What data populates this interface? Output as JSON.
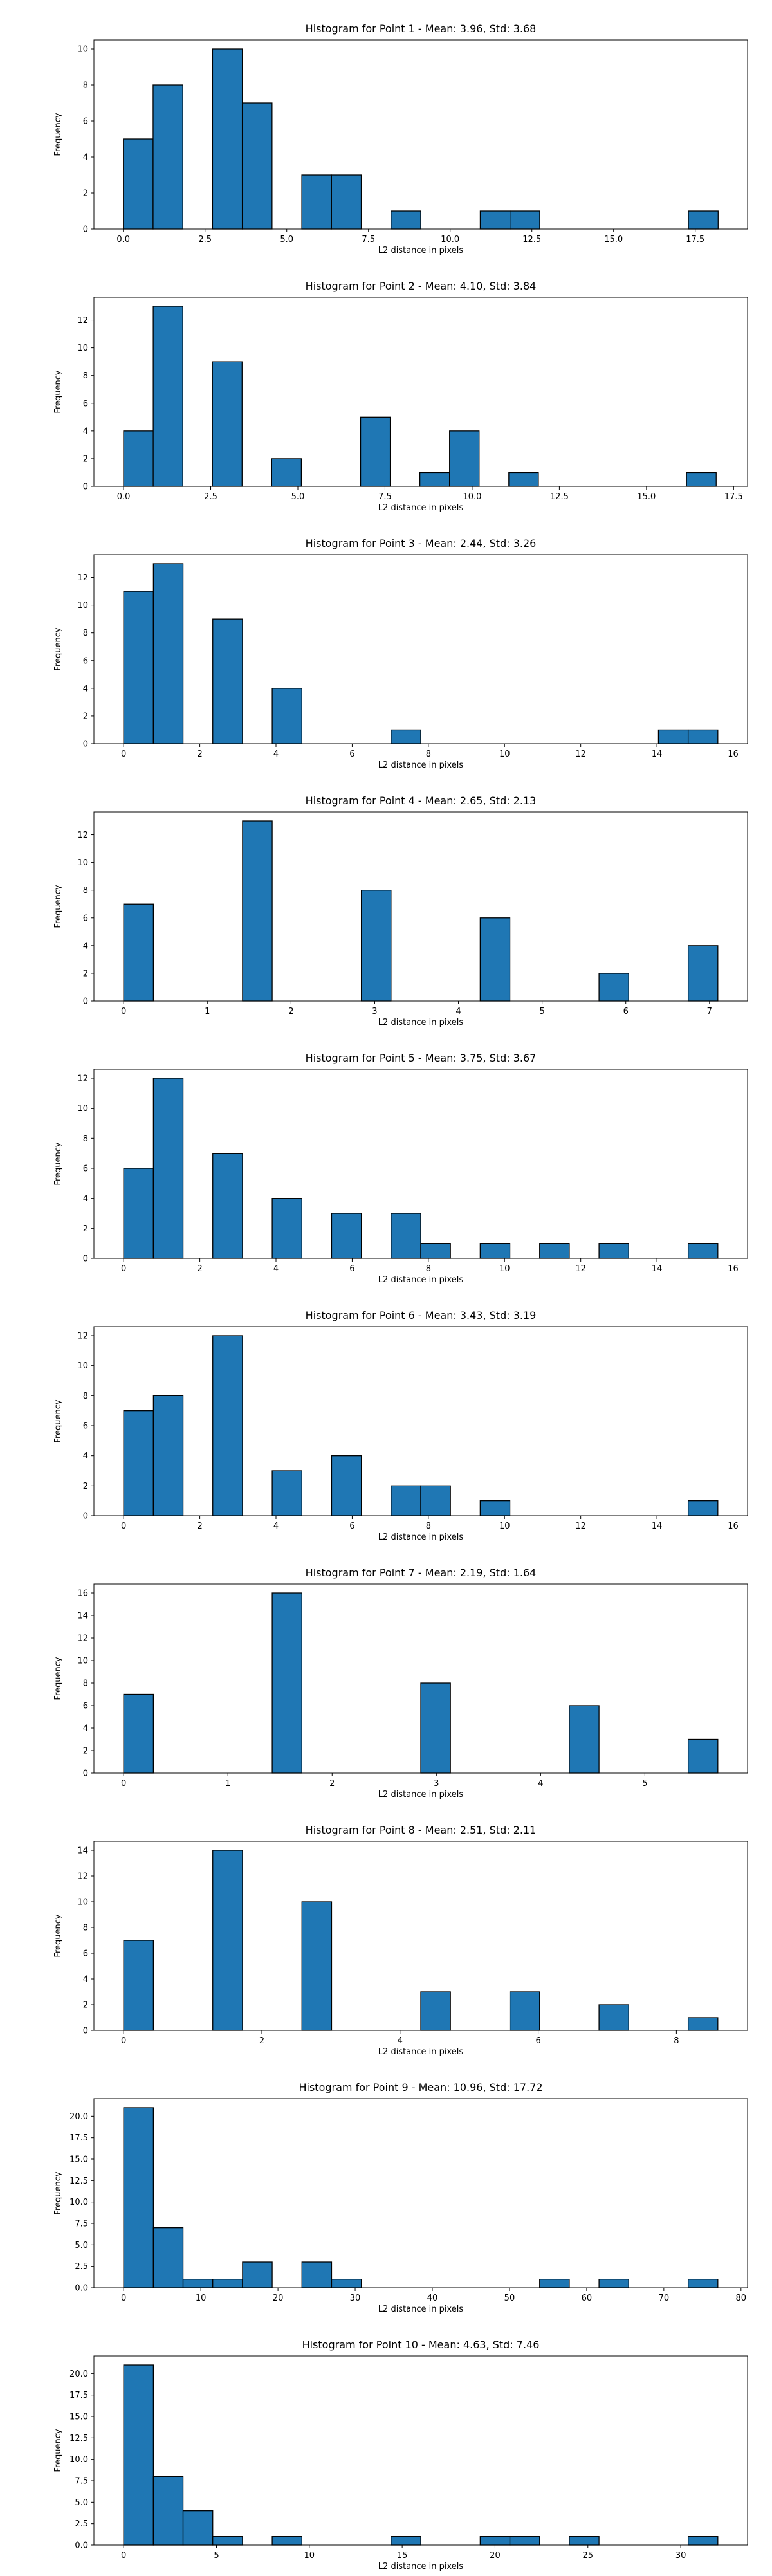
{
  "chart_data": [
    {
      "type": "bar",
      "title": "Histogram for Point 1 - Mean: 3.96, Std: 3.68",
      "xlabel": "L2 distance in pixels",
      "ylabel": "Frequency",
      "xlim": [
        -0.9,
        19.1
      ],
      "ylim": [
        0,
        10.5
      ],
      "xticks": [
        0,
        2.5,
        5,
        7.5,
        10,
        12.5,
        15,
        17.5
      ],
      "xtick_labels": [
        "0.0",
        "2.5",
        "5.0",
        "7.5",
        "10.0",
        "12.5",
        "15.0",
        "17.5"
      ],
      "yticks": [
        0,
        2,
        4,
        6,
        8,
        10
      ],
      "ytick_labels": [
        "0",
        "2",
        "4",
        "6",
        "8",
        "10"
      ],
      "bin_edges": [
        0.0,
        0.91,
        1.82,
        2.73,
        3.64,
        4.55,
        5.46,
        6.37,
        7.28,
        8.19,
        9.1,
        10.01,
        10.92,
        11.83,
        12.74,
        13.65,
        14.56,
        15.47,
        16.38,
        17.29,
        18.2
      ],
      "values": [
        5,
        8,
        0,
        10,
        7,
        0,
        3,
        3,
        0,
        1,
        0,
        0,
        1,
        1,
        0,
        0,
        0,
        0,
        0,
        1
      ],
      "bar_color": "#1f77b4",
      "edge_color": "#000000"
    },
    {
      "type": "bar",
      "title": "Histogram for Point 2 - Mean: 4.10, Std: 3.84",
      "xlabel": "L2 distance in pixels",
      "ylabel": "Frequency",
      "xlim": [
        -0.85,
        17.9
      ],
      "ylim": [
        0,
        13.65
      ],
      "xticks": [
        0,
        2.5,
        5,
        7.5,
        10,
        12.5,
        15,
        17.5
      ],
      "xtick_labels": [
        "0.0",
        "2.5",
        "5.0",
        "7.5",
        "10.0",
        "12.5",
        "15.0",
        "17.5"
      ],
      "yticks": [
        0,
        2,
        4,
        6,
        8,
        10,
        12
      ],
      "ytick_labels": [
        "0",
        "2",
        "4",
        "6",
        "8",
        "10",
        "12"
      ],
      "bin_edges": [
        0.0,
        0.85,
        1.7,
        2.55,
        3.4,
        4.25,
        5.1,
        5.95,
        6.8,
        7.65,
        8.5,
        9.35,
        10.2,
        11.05,
        11.9,
        12.75,
        13.6,
        14.45,
        15.3,
        16.15,
        17.0
      ],
      "values": [
        4,
        13,
        0,
        9,
        0,
        2,
        0,
        0,
        5,
        0,
        1,
        4,
        0,
        1,
        0,
        0,
        0,
        0,
        0,
        1
      ],
      "bar_color": "#1f77b4",
      "edge_color": "#000000"
    },
    {
      "type": "bar",
      "title": "Histogram for Point 3 - Mean: 2.44, Std: 3.26",
      "xlabel": "L2 distance in pixels",
      "ylabel": "Frequency",
      "xlim": [
        -0.78,
        16.38
      ],
      "ylim": [
        0,
        13.65
      ],
      "xticks": [
        0,
        2,
        4,
        6,
        8,
        10,
        12,
        14,
        16
      ],
      "xtick_labels": [
        "0",
        "2",
        "4",
        "6",
        "8",
        "10",
        "12",
        "14",
        "16"
      ],
      "yticks": [
        0,
        2,
        4,
        6,
        8,
        10,
        12
      ],
      "ytick_labels": [
        "0",
        "2",
        "4",
        "6",
        "8",
        "10",
        "12"
      ],
      "bin_edges": [
        0.0,
        0.78,
        1.56,
        2.34,
        3.12,
        3.9,
        4.68,
        5.46,
        6.24,
        7.02,
        7.8,
        8.58,
        9.36,
        10.14,
        10.92,
        11.7,
        12.48,
        13.26,
        14.04,
        14.82,
        15.6
      ],
      "values": [
        11,
        13,
        0,
        9,
        0,
        4,
        0,
        0,
        0,
        1,
        0,
        0,
        0,
        0,
        0,
        0,
        0,
        0,
        1,
        1
      ],
      "bar_color": "#1f77b4",
      "edge_color": "#000000"
    },
    {
      "type": "bar",
      "title": "Histogram for Point 4 - Mean: 2.65, Std: 2.13",
      "xlabel": "L2 distance in pixels",
      "ylabel": "Frequency",
      "xlim": [
        -0.355,
        7.455
      ],
      "ylim": [
        0,
        13.65
      ],
      "xticks": [
        0,
        1,
        2,
        3,
        4,
        5,
        6,
        7
      ],
      "xtick_labels": [
        "0",
        "1",
        "2",
        "3",
        "4",
        "5",
        "6",
        "7"
      ],
      "yticks": [
        0,
        2,
        4,
        6,
        8,
        10,
        12
      ],
      "ytick_labels": [
        "0",
        "2",
        "4",
        "6",
        "8",
        "10",
        "12"
      ],
      "bin_edges": [
        0.0,
        0.355,
        0.71,
        1.065,
        1.42,
        1.775,
        2.13,
        2.485,
        2.84,
        3.195,
        3.55,
        3.905,
        4.26,
        4.615,
        4.97,
        5.325,
        5.68,
        6.035,
        6.39,
        6.745,
        7.1
      ],
      "values": [
        7,
        0,
        0,
        0,
        13,
        0,
        0,
        0,
        8,
        0,
        0,
        0,
        6,
        0,
        0,
        0,
        2,
        0,
        0,
        4
      ],
      "bar_color": "#1f77b4",
      "edge_color": "#000000"
    },
    {
      "type": "bar",
      "title": "Histogram for Point 5 - Mean: 3.75, Std: 3.67",
      "xlabel": "L2 distance in pixels",
      "ylabel": "Frequency",
      "xlim": [
        -0.78,
        16.38
      ],
      "ylim": [
        0,
        12.6
      ],
      "xticks": [
        0,
        2,
        4,
        6,
        8,
        10,
        12,
        14,
        16
      ],
      "xtick_labels": [
        "0",
        "2",
        "4",
        "6",
        "8",
        "10",
        "12",
        "14",
        "16"
      ],
      "yticks": [
        0,
        2,
        4,
        6,
        8,
        10,
        12
      ],
      "ytick_labels": [
        "0",
        "2",
        "4",
        "6",
        "8",
        "10",
        "12"
      ],
      "bin_edges": [
        0.0,
        0.78,
        1.56,
        2.34,
        3.12,
        3.9,
        4.68,
        5.46,
        6.24,
        7.02,
        7.8,
        8.58,
        9.36,
        10.14,
        10.92,
        11.7,
        12.48,
        13.26,
        14.04,
        14.82,
        15.6
      ],
      "values": [
        6,
        12,
        0,
        7,
        0,
        4,
        0,
        3,
        0,
        3,
        1,
        0,
        1,
        0,
        1,
        0,
        1,
        0,
        0,
        1
      ],
      "bar_color": "#1f77b4",
      "edge_color": "#000000"
    },
    {
      "type": "bar",
      "title": "Histogram for Point 6 - Mean: 3.43, Std: 3.19",
      "xlabel": "L2 distance in pixels",
      "ylabel": "Frequency",
      "xlim": [
        -0.78,
        16.38
      ],
      "ylim": [
        0,
        12.6
      ],
      "xticks": [
        0,
        2,
        4,
        6,
        8,
        10,
        12,
        14,
        16
      ],
      "xtick_labels": [
        "0",
        "2",
        "4",
        "6",
        "8",
        "10",
        "12",
        "14",
        "16"
      ],
      "yticks": [
        0,
        2,
        4,
        6,
        8,
        10,
        12
      ],
      "ytick_labels": [
        "0",
        "2",
        "4",
        "6",
        "8",
        "10",
        "12"
      ],
      "bin_edges": [
        0.0,
        0.78,
        1.56,
        2.34,
        3.12,
        3.9,
        4.68,
        5.46,
        6.24,
        7.02,
        7.8,
        8.58,
        9.36,
        10.14,
        10.92,
        11.7,
        12.48,
        13.26,
        14.04,
        14.82,
        15.6
      ],
      "values": [
        7,
        8,
        0,
        12,
        0,
        3,
        0,
        4,
        0,
        2,
        2,
        0,
        1,
        0,
        0,
        0,
        0,
        0,
        0,
        1
      ],
      "bar_color": "#1f77b4",
      "edge_color": "#000000"
    },
    {
      "type": "bar",
      "title": "Histogram for Point 7 - Mean: 2.19, Std: 1.64",
      "xlabel": "L2 distance in pixels",
      "ylabel": "Frequency",
      "xlim": [
        -0.285,
        5.985
      ],
      "ylim": [
        0,
        16.8
      ],
      "xticks": [
        0,
        1,
        2,
        3,
        4,
        5
      ],
      "xtick_labels": [
        "0",
        "1",
        "2",
        "3",
        "4",
        "5"
      ],
      "yticks": [
        0,
        2,
        4,
        6,
        8,
        10,
        12,
        14,
        16
      ],
      "ytick_labels": [
        "0",
        "2",
        "4",
        "6",
        "8",
        "10",
        "12",
        "14",
        "16"
      ],
      "bin_edges": [
        0.0,
        0.285,
        0.57,
        0.855,
        1.14,
        1.425,
        1.71,
        1.995,
        2.28,
        2.565,
        2.85,
        3.135,
        3.42,
        3.705,
        3.99,
        4.275,
        4.56,
        4.845,
        5.13,
        5.415,
        5.7
      ],
      "values": [
        7,
        0,
        0,
        0,
        0,
        16,
        0,
        0,
        0,
        0,
        8,
        0,
        0,
        0,
        0,
        6,
        0,
        0,
        0,
        3
      ],
      "bar_color": "#1f77b4",
      "edge_color": "#000000"
    },
    {
      "type": "bar",
      "title": "Histogram for Point 8 - Mean: 2.51, Std: 2.11",
      "xlabel": "L2 distance in pixels",
      "ylabel": "Frequency",
      "xlim": [
        -0.43,
        9.03
      ],
      "ylim": [
        0,
        14.7
      ],
      "xticks": [
        0,
        2,
        4,
        6,
        8
      ],
      "xtick_labels": [
        "0",
        "2",
        "4",
        "6",
        "8"
      ],
      "yticks": [
        0,
        2,
        4,
        6,
        8,
        10,
        12,
        14
      ],
      "ytick_labels": [
        "0",
        "2",
        "4",
        "6",
        "8",
        "10",
        "12",
        "14"
      ],
      "bin_edges": [
        0.0,
        0.43,
        0.86,
        1.29,
        1.72,
        2.15,
        2.58,
        3.01,
        3.44,
        3.87,
        4.3,
        4.73,
        5.16,
        5.59,
        6.02,
        6.45,
        6.88,
        7.31,
        7.74,
        8.17,
        8.6
      ],
      "values": [
        7,
        0,
        0,
        14,
        0,
        0,
        10,
        0,
        0,
        0,
        3,
        0,
        0,
        3,
        0,
        0,
        2,
        0,
        0,
        1
      ],
      "bar_color": "#1f77b4",
      "edge_color": "#000000"
    },
    {
      "type": "bar",
      "title": "Histogram for Point 9 - Mean: 10.96, Std: 17.72",
      "xlabel": "L2 distance in pixels",
      "ylabel": "Frequency",
      "xlim": [
        -3.85,
        80.85
      ],
      "ylim": [
        0,
        22.05
      ],
      "xticks": [
        0,
        10,
        20,
        30,
        40,
        50,
        60,
        70,
        80
      ],
      "xtick_labels": [
        "0",
        "10",
        "20",
        "30",
        "40",
        "50",
        "60",
        "70",
        "80"
      ],
      "yticks": [
        0,
        2.5,
        5,
        7.5,
        10,
        12.5,
        15,
        17.5,
        20
      ],
      "ytick_labels": [
        "0.0",
        "2.5",
        "5.0",
        "7.5",
        "10.0",
        "12.5",
        "15.0",
        "17.5",
        "20.0"
      ],
      "bin_edges": [
        0.0,
        3.85,
        7.7,
        11.55,
        15.4,
        19.25,
        23.1,
        26.95,
        30.8,
        34.65,
        38.5,
        42.35,
        46.2,
        50.05,
        53.9,
        57.75,
        61.6,
        65.45,
        69.3,
        73.15,
        77.0
      ],
      "values": [
        21,
        7,
        1,
        1,
        3,
        0,
        3,
        1,
        0,
        0,
        0,
        0,
        0,
        0,
        1,
        0,
        1,
        0,
        0,
        1
      ],
      "bar_color": "#1f77b4",
      "edge_color": "#000000"
    },
    {
      "type": "bar",
      "title": "Histogram for Point 10 - Mean: 4.63, Std: 7.46",
      "xlabel": "L2 distance in pixels",
      "ylabel": "Frequency",
      "xlim": [
        -1.6,
        33.6
      ],
      "ylim": [
        0,
        22.05
      ],
      "xticks": [
        0,
        5,
        10,
        15,
        20,
        25,
        30
      ],
      "xtick_labels": [
        "0",
        "5",
        "10",
        "15",
        "20",
        "25",
        "30"
      ],
      "yticks": [
        0,
        2.5,
        5,
        7.5,
        10,
        12.5,
        15,
        17.5,
        20
      ],
      "ytick_labels": [
        "0.0",
        "2.5",
        "5.0",
        "7.5",
        "10.0",
        "12.5",
        "15.0",
        "17.5",
        "20.0"
      ],
      "bin_edges": [
        0.0,
        1.6,
        3.2,
        4.8,
        6.4,
        8.0,
        9.6,
        11.2,
        12.8,
        14.4,
        16.0,
        17.6,
        19.2,
        20.8,
        22.4,
        24.0,
        25.6,
        27.2,
        28.8,
        30.4,
        32.0
      ],
      "values": [
        21,
        8,
        4,
        1,
        0,
        1,
        0,
        0,
        0,
        1,
        0,
        0,
        1,
        1,
        0,
        1,
        0,
        0,
        0,
        1
      ],
      "bar_color": "#1f77b4",
      "edge_color": "#000000"
    }
  ]
}
